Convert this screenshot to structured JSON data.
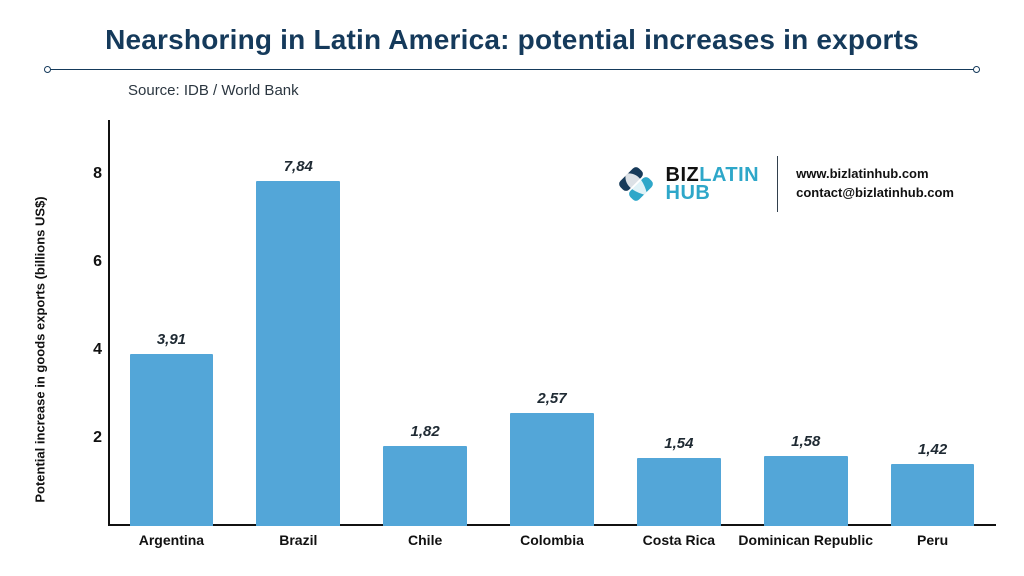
{
  "title": {
    "text": "Nearshoring in Latin America: potential increases in exports",
    "color": "#153a5b",
    "fontsize": 28
  },
  "rule": {
    "color": "#153a5b"
  },
  "source": {
    "text": "Source:  IDB / World Bank",
    "color": "#2b3640"
  },
  "brand": {
    "name_biz": "BIZ",
    "name_latin": "LATIN",
    "name_hub": "HUB",
    "website": "www.bizlatinhub.com",
    "email": "contact@bizlatinhub.com",
    "text_color": "#111111",
    "accent_color": "#2ea7c9",
    "icon_color_a": "#173a59",
    "icon_color_b": "#2ea7c9"
  },
  "chart": {
    "type": "bar",
    "ylabel": "Potential increase in goods exports (billions US$)",
    "ylabel_color": "#111111",
    "ylim": [
      0,
      9
    ],
    "yticks": [
      2,
      4,
      6,
      8
    ],
    "ytick_color": "#111111",
    "axis_color": "#111111",
    "bar_color": "#53a6d8",
    "bar_width_pct": 66,
    "value_font_italic": true,
    "value_color": "#1f2a33",
    "label_color": "#111111",
    "background_color": "#ffffff",
    "categories": [
      "Argentina",
      "Brazil",
      "Chile",
      "Colombia",
      "Costa Rica",
      "Dominican Republic",
      "Peru"
    ],
    "values": [
      3.91,
      7.84,
      1.82,
      2.57,
      1.54,
      1.58,
      1.42
    ],
    "value_labels": [
      "3,91",
      "7,84",
      "1,82",
      "2,57",
      "1,54",
      "1,58",
      "1,42"
    ]
  }
}
